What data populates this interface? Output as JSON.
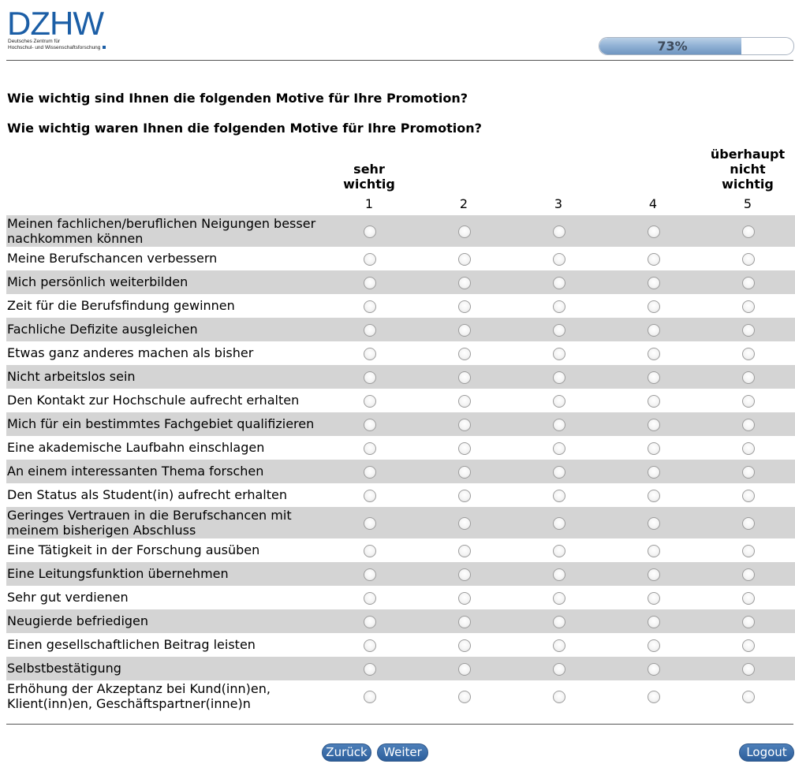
{
  "logo": {
    "letters": "DZHW",
    "subtitle": "Deutsches Zentrum für\nHochschul- und Wissenschaftsforschung"
  },
  "progress": {
    "value": 0.73,
    "label": "73%"
  },
  "questions": [
    "Wie wichtig sind Ihnen die folgenden Motive für Ihre Promotion?",
    "Wie wichtig waren Ihnen die folgenden Motive für Ihre Promotion?"
  ],
  "scale": {
    "low_label": "sehr\nwichtig",
    "high_label": "überhaupt\nnicht\nwichtig",
    "points": [
      "1",
      "2",
      "3",
      "4",
      "5"
    ]
  },
  "items": [
    "Meinen fachlichen/beruflichen Neigungen besser nachkommen können",
    "Meine Berufschancen verbessern",
    "Mich persönlich weiterbilden",
    "Zeit für die Berufsfindung gewinnen",
    "Fachliche Defizite ausgleichen",
    "Etwas ganz anderes machen als bisher",
    "Nicht arbeitslos sein",
    "Den Kontakt zur Hochschule aufrecht erhalten",
    "Mich für ein bestimmtes Fachgebiet qualifizieren",
    "Eine akademische Laufbahn einschlagen",
    "An einem interessanten Thema forschen",
    "Den Status als Student(in) aufrecht erhalten",
    "Geringes Vertrauen in die Berufschancen mit meinem bisherigen Abschluss",
    "Eine Tätigkeit in der Forschung ausüben",
    "Eine Leitungsfunktion übernehmen",
    "Sehr gut verdienen",
    "Neugierde befriedigen",
    "Einen gesellschaftlichen Beitrag leisten",
    "Selbstbestätigung",
    "Erhöhung der Akzeptanz bei Kund(inn)en, Klient(inn)en, Geschäftspartner(inne)n"
  ],
  "buttons": {
    "back": "Zurück",
    "next": "Weiter",
    "logout": "Logout"
  },
  "colors": {
    "brand": "#1b5ea6",
    "button": "#3a6ca9",
    "row_stripe": "#d4d4d4"
  }
}
